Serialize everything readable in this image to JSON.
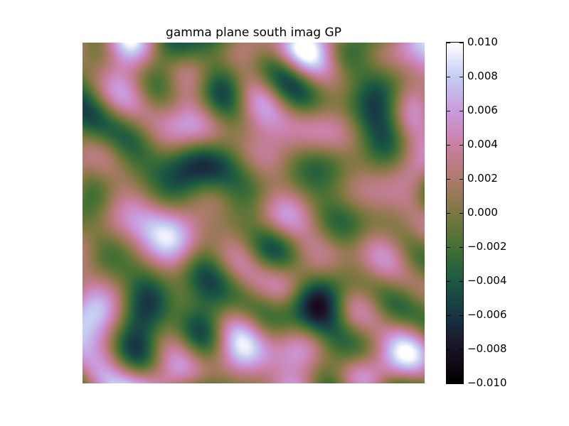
{
  "chart_data": {
    "type": "heatmap",
    "title": "gamma plane south imag GP",
    "xlabel": "",
    "ylabel": "",
    "colormap": "cubehelix",
    "color_range": [
      -0.01,
      0.01
    ],
    "colorbar": {
      "ticks": [
        0.01,
        0.008,
        0.006,
        0.004,
        0.002,
        0.0,
        -0.002,
        -0.004,
        -0.006,
        -0.008,
        -0.01
      ],
      "tick_labels": [
        "0.010",
        "0.008",
        "0.006",
        "0.004",
        "0.002",
        "0.000",
        "−0.002",
        "−0.004",
        "−0.006",
        "−0.008",
        "−0.010"
      ]
    },
    "grid": false,
    "axes_visible": false
  }
}
